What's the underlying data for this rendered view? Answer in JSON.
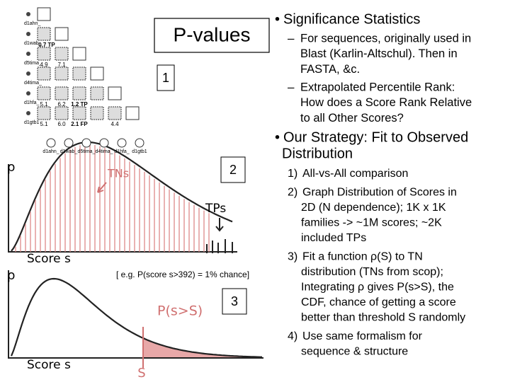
{
  "title": "P-values",
  "panels": {
    "one": "1",
    "two": "2",
    "three": "3"
  },
  "caption": "[ e.g. P(score s>392) = 1% chance]",
  "matrix": {
    "row_labels": [
      "d1ahn_",
      "d1wab_",
      "d5tima_",
      "d4tima_",
      "d1hfa_",
      "d1gtb1"
    ],
    "col_labels": [
      "d1ahn_",
      "d1wab_",
      "d5tima_",
      "d4tima_",
      "d1hfa_",
      "d1gtb1"
    ],
    "cells": [
      "0.7 TP",
      "4.9",
      "7.1",
      "5.1",
      "6.2",
      "1.2 TP",
      "5.1",
      "6.0",
      "2.1 FP",
      "4.4"
    ]
  },
  "plot_top": {
    "y_label": "ρ",
    "x_label": "Score s",
    "tn_label": "TNs",
    "tp_label": "TPs"
  },
  "plot_bottom": {
    "y_label": "ρ",
    "x_label": "Score s",
    "area_label": "P(s>S)",
    "threshold_label": "S"
  },
  "significance": {
    "heading": "Significance Statistics",
    "items": [
      [
        "For sequences, originally used in",
        "Blast (Karlin-Altschul). Then in",
        "FASTA, &c."
      ],
      [
        "Extrapolated Percentile Rank:",
        "How does a Score Rank Relative",
        "to all Other Scores?"
      ]
    ]
  },
  "strategy": {
    "heading": [
      "Our Strategy: Fit to Observed",
      "Distribution"
    ],
    "items": [
      {
        "number": "1)",
        "lines": [
          "All-vs-All comparison"
        ]
      },
      {
        "number": "2)",
        "lines": [
          "Graph Distribution of Scores in",
          "2D (N dependence); 1K x 1K",
          "families -> ~1M scores; ~2K",
          "included TPs"
        ]
      },
      {
        "number": "3)",
        "lines": [
          "Fit a function ρ(S) to TN",
          "distribution (TNs from scop);",
          "Integrating ρ gives P(s>S), the",
          "CDF, chance of getting a score",
          "better than threshold S randomly"
        ]
      },
      {
        "number": "4)",
        "lines": [
          "Use same formalism for",
          "sequence & structure"
        ]
      }
    ]
  }
}
